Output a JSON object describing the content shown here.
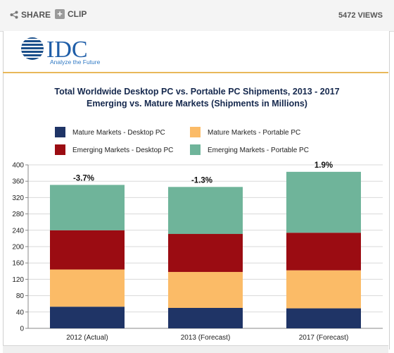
{
  "toolbar": {
    "share_label": "SHARE",
    "clip_label": "CLIP",
    "views": "5472 VIEWS"
  },
  "logo": {
    "wordmark": "IDC",
    "tagline": "Analyze the Future"
  },
  "chart_data": {
    "type": "bar",
    "stacked": true,
    "title": "Total Worldwide Desktop PC vs. Portable PC Shipments, 2013 - 2017",
    "subtitle": "Emerging vs. Mature Markets (Shipments in Millions)",
    "categories": [
      "2012 (Actual)",
      "2013 (Forecast)",
      "2017 (Forecast)"
    ],
    "series": [
      {
        "name": "Mature Markets - Desktop PC",
        "color": "#1f3466",
        "values": [
          53,
          50,
          49
        ]
      },
      {
        "name": "Mature Markets - Portable PC",
        "color": "#fbbb67",
        "values": [
          91,
          88,
          93
        ]
      },
      {
        "name": "Emerging Markets - Desktop PC",
        "color": "#9b0c12",
        "values": [
          96,
          93,
          92
        ]
      },
      {
        "name": "Emerging Markets - Portable PC",
        "color": "#6fb49a",
        "values": [
          111,
          115,
          149
        ]
      }
    ],
    "annotations": [
      "-3.7%",
      "-1.3%",
      "1.9%"
    ],
    "yticks": [
      0,
      40,
      80,
      120,
      160,
      200,
      240,
      280,
      320,
      360,
      400
    ],
    "ylim": [
      0,
      400
    ],
    "grid": true,
    "legend": "top"
  }
}
